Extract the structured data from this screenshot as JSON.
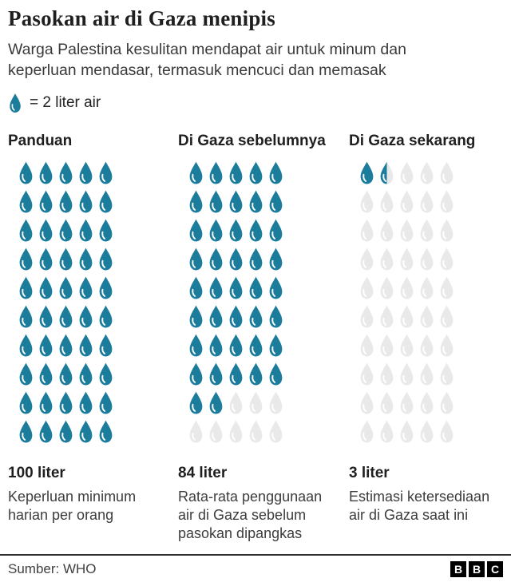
{
  "header": {
    "title": "Pasokan air di Gaza menipis",
    "subtitle": "Warga Palestina kesulitan mendapat air untuk minum dan keperluan mendasar, termasuk mencuci dan memasak"
  },
  "legend": {
    "label": "= 2 liter air"
  },
  "chart_data": {
    "type": "pictogram",
    "unit": "1 drop = 2 liter air",
    "liters_per_drop": 2,
    "drops_per_row": 5,
    "total_drops_per_column": 50,
    "colors": {
      "filled": "#1B7C9C",
      "empty": "#E9E9E9"
    },
    "series": [
      {
        "name": "Panduan",
        "liters": 100,
        "filled_drops": 50,
        "half_drops": 0,
        "value_label": "100 liter",
        "description": "Keperluan minimum harian per orang"
      },
      {
        "name": "Di Gaza sebelumnya",
        "liters": 84,
        "filled_drops": 42,
        "half_drops": 0,
        "value_label": "84 liter",
        "description": "Rata-rata penggunaan air di Gaza sebelum pasokan dipangkas"
      },
      {
        "name": "Di Gaza sekarang",
        "liters": 3,
        "filled_drops": 1,
        "half_drops": 1,
        "value_label": "3 liter",
        "description": "Estimasi ketersediaan air di Gaza saat ini"
      }
    ]
  },
  "footer": {
    "source": "Sumber: WHO",
    "logo_letters": [
      "B",
      "B",
      "C"
    ]
  }
}
